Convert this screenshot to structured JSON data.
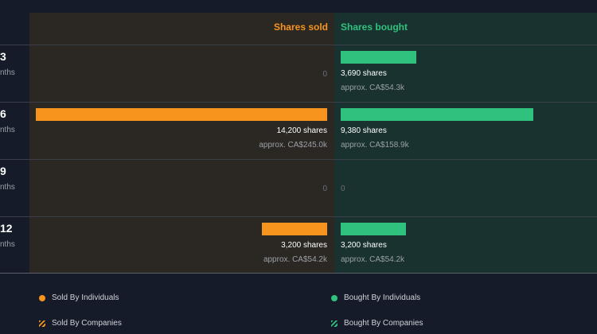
{
  "chart_data": {
    "type": "bar",
    "orientation": "horizontal-diverging",
    "headers": {
      "sold": "Shares sold",
      "bought": "Shares bought"
    },
    "rows": [
      {
        "label": "3",
        "sublabel": "nths",
        "sold": 0,
        "sold_text": "0",
        "sold_approx": "",
        "bought": 3690,
        "bought_text": "3,690 shares",
        "bought_approx": "approx. CA$54.3k"
      },
      {
        "label": "6",
        "sublabel": "nths",
        "sold": 14200,
        "sold_text": "14,200 shares",
        "sold_approx": "approx. CA$245.0k",
        "bought": 9380,
        "bought_text": "9,380 shares",
        "bought_approx": "approx. CA$158.9k"
      },
      {
        "label": "9",
        "sublabel": "nths",
        "sold": 0,
        "sold_text": "0",
        "sold_approx": "",
        "bought": 0,
        "bought_text": "0",
        "bought_approx": ""
      },
      {
        "label": "12",
        "sublabel": "nths",
        "sold": 3200,
        "sold_text": "3,200 shares",
        "sold_approx": "approx. CA$54.2k",
        "bought": 3200,
        "bought_text": "3,200 shares",
        "bought_approx": "approx. CA$54.2k"
      }
    ],
    "legend": [
      {
        "label": "Sold By Individuals",
        "marker": "dot",
        "color": "#f7941d"
      },
      {
        "label": "Bought By Individuals",
        "marker": "dot",
        "color": "#2ec27e"
      },
      {
        "label": "Sold By Companies",
        "marker": "stripe",
        "color": "#f7941d"
      },
      {
        "label": "Bought By Companies",
        "marker": "stripe",
        "color": "#2ec27e"
      }
    ],
    "colors": {
      "sold": "#f7941d",
      "bought": "#2ec27e"
    }
  }
}
